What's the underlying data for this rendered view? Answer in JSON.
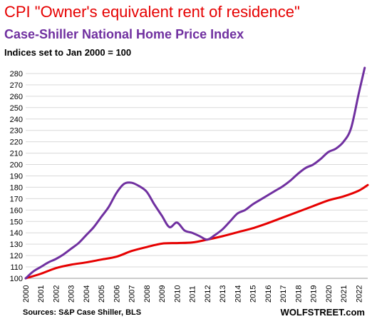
{
  "header": {
    "title": "CPI \"Owner's equivalent rent of residence\"",
    "subtitle": "Case-Shiller  National  Home Price Index",
    "note": "Indices set to Jan 2000 = 100"
  },
  "footer": {
    "source": "Sources: S&P Case Shiller, BLS",
    "brand": "WOLFSTREET.com"
  },
  "chart_data": {
    "type": "line",
    "xlim": [
      2000,
      2022.6
    ],
    "ylim": [
      100,
      285
    ],
    "y_ticks": [
      100,
      110,
      120,
      130,
      140,
      150,
      160,
      170,
      180,
      190,
      200,
      210,
      220,
      230,
      240,
      250,
      260,
      270,
      280
    ],
    "x_ticks": [
      2000,
      2001,
      2002,
      2003,
      2004,
      2005,
      2006,
      2007,
      2008,
      2009,
      2010,
      2011,
      2012,
      2013,
      2014,
      2015,
      2016,
      2017,
      2018,
      2019,
      2020,
      2021,
      2022
    ],
    "grid": true,
    "legend": "none",
    "series": [
      {
        "name": "CPI \"Owner's equivalent rent of residence\"",
        "color": "#e60000",
        "x": [
          2000,
          2001,
          2002,
          2003,
          2004,
          2005,
          2006,
          2007,
          2008,
          2009,
          2010,
          2011,
          2012,
          2013,
          2014,
          2015,
          2016,
          2017,
          2018,
          2019,
          2020,
          2021,
          2022,
          2022.6
        ],
        "y": [
          100,
          104,
          109,
          112,
          114,
          116.5,
          119,
          124,
          127.5,
          130.5,
          131,
          131.5,
          134,
          137,
          140.5,
          144,
          148.5,
          153.5,
          158.5,
          163.5,
          168.5,
          172,
          177,
          182
        ]
      },
      {
        "name": "Case-Shiller National Home Price Index",
        "color": "#7030a0",
        "x": [
          2000,
          2000.5,
          2001,
          2001.5,
          2002,
          2002.5,
          2003,
          2003.5,
          2004,
          2004.5,
          2005,
          2005.5,
          2006,
          2006.5,
          2007,
          2007.5,
          2008,
          2008.5,
          2009,
          2009.5,
          2010,
          2010.5,
          2011,
          2011.5,
          2012,
          2012.5,
          2013,
          2013.5,
          2014,
          2014.5,
          2015,
          2015.5,
          2016,
          2016.5,
          2017,
          2017.5,
          2018,
          2018.5,
          2019,
          2019.5,
          2020,
          2020.5,
          2021,
          2021.5,
          2022,
          2022.4
        ],
        "y": [
          100,
          106,
          110,
          114,
          117,
          121,
          126,
          131,
          138,
          145,
          154,
          163,
          175,
          183,
          184,
          181,
          176,
          165,
          155,
          145,
          149,
          142,
          140,
          137,
          134,
          138,
          143,
          150,
          157,
          160,
          165,
          169,
          173,
          177,
          181,
          186,
          192,
          197,
          200,
          205,
          211,
          214,
          220,
          232,
          262,
          285
        ]
      }
    ]
  }
}
